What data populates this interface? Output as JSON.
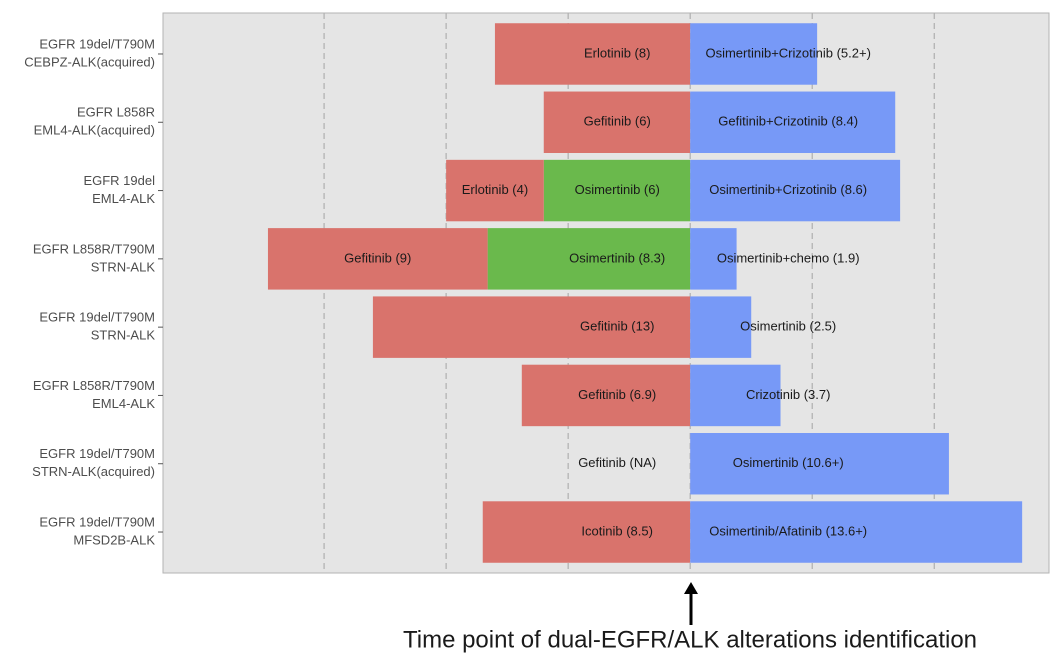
{
  "chart_data": {
    "type": "swimmer",
    "xlim": [
      -21.6,
      14.7
    ],
    "xticks": [
      -15,
      -10,
      -5,
      0,
      5,
      10
    ],
    "grid": true,
    "categories": [
      [
        "EGFR 19del/T790M",
        "CEBPZ-ALK(acquired)"
      ],
      [
        "EGFR L858R",
        "EML4-ALK(acquired)"
      ],
      [
        "EGFR 19del",
        "EML4-ALK"
      ],
      [
        "EGFR L858R/T790M",
        "STRN-ALK"
      ],
      [
        "EGFR 19del/T790M",
        "STRN-ALK"
      ],
      [
        "EGFR L858R/T790M",
        "EML4-ALK"
      ],
      [
        "EGFR 19del/T790M",
        "STRN-ALK(acquired)"
      ],
      [
        "EGFR 19del/T790M",
        "MFSD2B-ALK"
      ]
    ],
    "rows": [
      {
        "before": [
          {
            "label": "Erlotinib (8)",
            "value": 8,
            "color": "#d9736c"
          }
        ],
        "after": [
          {
            "label": "Osimertinib+Crizotinib (5.2+)",
            "value": 5.2,
            "color": "#7799f7"
          }
        ]
      },
      {
        "before": [
          {
            "label": "Gefitinib (6)",
            "value": 6,
            "color": "#d9736c"
          }
        ],
        "after": [
          {
            "label": "Gefitinib+Crizotinib (8.4)",
            "value": 8.4,
            "color": "#7799f7"
          }
        ]
      },
      {
        "before": [
          {
            "label": "Osimertinib (6)",
            "value": 6,
            "color": "#6ab94c"
          },
          {
            "label": "Erlotinib (4)",
            "value": 4,
            "color": "#d9736c"
          }
        ],
        "after": [
          {
            "label": "Osimertinib+Crizotinib (8.6)",
            "value": 8.6,
            "color": "#7799f7"
          }
        ]
      },
      {
        "before": [
          {
            "label": "Osimertinib (8.3)",
            "value": 8.3,
            "color": "#6ab94c"
          },
          {
            "label": "Gefitinib (9)",
            "value": 9,
            "color": "#d9736c"
          }
        ],
        "after": [
          {
            "label": "Osimertinib+chemo (1.9)",
            "value": 1.9,
            "color": "#7799f7"
          }
        ]
      },
      {
        "before": [
          {
            "label": "Gefitinib (13)",
            "value": 13,
            "color": "#d9736c"
          }
        ],
        "after": [
          {
            "label": "Osimertinib (2.5)",
            "value": 2.5,
            "color": "#7799f7"
          }
        ]
      },
      {
        "before": [
          {
            "label": "Gefitinib (6.9)",
            "value": 6.9,
            "color": "#d9736c"
          }
        ],
        "after": [
          {
            "label": "Crizotinib (3.7)",
            "value": 3.7,
            "color": "#7799f7"
          }
        ]
      },
      {
        "before": [
          {
            "label": "Gefitinib (NA)",
            "value": null,
            "color": "#d9736c"
          }
        ],
        "after": [
          {
            "label": "Osimertinib (10.6+)",
            "value": 10.6,
            "color": "#7799f7"
          }
        ]
      },
      {
        "before": [
          {
            "label": "Icotinib (8.5)",
            "value": 8.5,
            "color": "#d9736c"
          }
        ],
        "after": [
          {
            "label": "Osimertinib/Afatinib (13.6+)",
            "value": 13.6,
            "color": "#7799f7"
          }
        ]
      }
    ],
    "annotation": "Time point of  dual-EGFR/ALK alterations identification"
  }
}
